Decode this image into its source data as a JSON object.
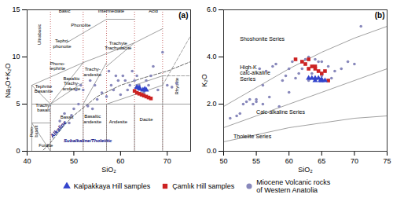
{
  "chart_data": [
    {
      "type": "scatter",
      "title": "(a)",
      "xlabel": "SiO₂",
      "ylabel": "Na₂O+K₂O",
      "xlim": [
        40,
        75
      ],
      "ylim": [
        0,
        15
      ],
      "xticks": [
        40,
        50,
        60,
        70
      ],
      "yticks": [
        0,
        5,
        10,
        15
      ],
      "series": [
        {
          "name": "Kalpakkaya Hill samples",
          "color": "#3344cc",
          "marker": "triangle",
          "x": [
            63.5,
            64.2,
            64.8,
            65.2,
            65.5,
            64.0
          ],
          "values": [
            6.8,
            6.6,
            6.5,
            6.6,
            6.5,
            6.7
          ]
        },
        {
          "name": "Çamlık Hill samples",
          "color": "#cc2222",
          "marker": "square",
          "x": [
            63.0,
            63.5,
            64.0,
            64.5,
            65.0,
            65.5,
            66.0,
            66.5
          ],
          "values": [
            6.4,
            6.2,
            6.1,
            6.0,
            5.9,
            5.8,
            5.7,
            5.6
          ]
        },
        {
          "name": "Miocene Volcanic rocks\nof Western Anatolia",
          "color": "#8888bb",
          "marker": "circle",
          "x": [
            47,
            48,
            49,
            49.5,
            50,
            50.5,
            51,
            51.5,
            52,
            53,
            53.5,
            54,
            54.5,
            55,
            56,
            57,
            57.5,
            58,
            58.5,
            59,
            59.5,
            60,
            60.5,
            61,
            61.5,
            62,
            62.5,
            63,
            63.5,
            64,
            64.5,
            65,
            65.5,
            66,
            66.5,
            67,
            68,
            69,
            70,
            71,
            72
          ],
          "values": [
            3.2,
            4.0,
            3.0,
            3.8,
            4.5,
            6.5,
            5.0,
            7.0,
            6.5,
            4.8,
            7.5,
            4.5,
            7.0,
            5.5,
            6.2,
            5.8,
            8.5,
            7.0,
            6.5,
            8.0,
            7.5,
            6.0,
            8.0,
            7.5,
            6.5,
            7.0,
            8.5,
            7.5,
            8.0,
            7.0,
            6.5,
            6.2,
            7.5,
            7.0,
            8.0,
            9.0,
            6.5,
            10.5,
            7.0,
            6.8,
            7.2
          ]
        }
      ],
      "boundaries": [
        {
          "color": "#888888",
          "line_style": "solid",
          "paths": [
            [
              [
                41,
                0
              ],
              [
                41,
                7
              ]
            ],
            [
              [
                41,
                3
              ],
              [
                45,
                3
              ]
            ],
            [
              [
                41,
                3
              ],
              [
                45,
                0
              ]
            ],
            [
              [
                41,
                7
              ],
              [
                45,
                5
              ]
            ],
            [
              [
                45,
                0
              ],
              [
                45,
                5
              ]
            ],
            [
              [
                52,
                0
              ],
              [
                52,
                5
              ]
            ],
            [
              [
                57,
                0
              ],
              [
                57,
                5
              ]
            ],
            [
              [
                63,
                0
              ],
              [
                63,
                5
              ]
            ],
            [
              [
                69,
                0
              ],
              [
                69,
                5
              ]
            ],
            [
              [
                41,
                5
              ],
              [
                77,
                5
              ]
            ],
            [
              [
                48.4,
                11.5
              ],
              [
                57,
                14.0
              ]
            ],
            [
              [
                57,
                14.0
              ],
              [
                63,
                14.0
              ]
            ],
            [
              [
                45,
                5.0
              ],
              [
                52,
                9.4
              ]
            ],
            [
              [
                45,
                5.0
              ],
              [
                52,
                7.3
              ]
            ],
            [
              [
                52,
                5
              ],
              [
                57,
                9.4
              ]
            ],
            [
              [
                52,
                9.4
              ],
              [
                63,
                11.5
              ]
            ],
            [
              [
                57,
                9.0
              ],
              [
                63,
                11.5
              ]
            ],
            [
              [
                63,
                11.5
              ],
              [
                69,
                13.0
              ]
            ],
            [
              [
                69,
                5
              ],
              [
                69,
                8
              ]
            ],
            [
              [
                63,
                7
              ],
              [
                69,
                8
              ]
            ],
            [
              [
                57,
                5
              ],
              [
                69,
                7
              ]
            ],
            [
              [
                41,
                7.0
              ],
              [
                52,
                9.4
              ]
            ]
          ]
        },
        {
          "color": "#888888",
          "line_style": "dashed",
          "paths": [
            [
              [
                69,
                8
              ],
              [
                77,
                8
              ]
            ],
            [
              [
                69,
                7.0
              ],
              [
                77,
                14
              ]
            ]
          ]
        },
        {
          "color": "#444444",
          "line_style": "dashed",
          "paths": [
            [
              [
                39.0,
                -0.5
              ],
              [
                40.0,
                0.0
              ],
              [
                43.2,
                0.0
              ],
              [
                45,
                0.9
              ],
              [
                48,
                2.8
              ],
              [
                50,
                3.8
              ],
              [
                53,
                5.0
              ],
              [
                55,
                5.8
              ],
              [
                60,
                7.0
              ],
              [
                65,
                7.8
              ],
              [
                70,
                8.5
              ],
              [
                75,
                9.5
              ],
              [
                77,
                10.0
              ]
            ]
          ]
        }
      ],
      "vertical_lines": {
        "color": "#bb4444",
        "line_style": "dotted",
        "x": [
          45,
          52,
          57,
          63,
          69
        ]
      },
      "annotations": [
        {
          "text": "Ultrabasic",
          "x": 42.2,
          "y": 13.5
        },
        {
          "text": "Basic",
          "x": 48,
          "y": 14.7
        },
        {
          "text": "Intermediate",
          "x": 58,
          "y": 14.7
        },
        {
          "text": "Acid",
          "x": 67,
          "y": 14.7
        },
        {
          "text": "Phonolite",
          "x": 51.5,
          "y": 13.2
        },
        {
          "text": "Tephri-\nphonoite",
          "x": 47.5,
          "y": 11.0
        },
        {
          "text": "Trachyte\nTrachydacite",
          "x": 59.5,
          "y": 10.8
        },
        {
          "text": "Phono-\ntephrite",
          "x": 46.5,
          "y": 8.6
        },
        {
          "text": "Trachy-\nandesite",
          "x": 54.0,
          "y": 8.0
        },
        {
          "text": "Tephrite\nBasanite",
          "x": 43.5,
          "y": 6.2
        },
        {
          "text": "Basaltic\nTrachy-\nandesite",
          "x": 49.5,
          "y": 6.5
        },
        {
          "text": "Trachy-\nbasalt",
          "x": 43.5,
          "y": 4.2
        },
        {
          "text": "Basalt",
          "x": 48.5,
          "y": 3.5
        },
        {
          "text": "Picro-\nbasalt",
          "x": 41.5,
          "y": 1.5
        },
        {
          "text": "Basaltic\nandesite",
          "x": 54.0,
          "y": 3.0
        },
        {
          "text": "Andesite",
          "x": 59.5,
          "y": 3.0
        },
        {
          "text": "Dacite",
          "x": 65.5,
          "y": 3.2
        },
        {
          "text": "Rhyolite",
          "x": 72.0,
          "y": 6.0
        },
        {
          "text": "Foidite",
          "x": 42.5,
          "y": 0.5
        },
        {
          "text": "Alkaline",
          "x": 47.0,
          "y": 2.2,
          "color": "navy"
        },
        {
          "text": "Subalkaline/Tholeiitic",
          "x": 53.0,
          "y": 1.0,
          "color": "navy"
        }
      ]
    },
    {
      "type": "scatter",
      "title": "(b)",
      "xlabel": "SiO₂",
      "ylabel": "K₂O",
      "xlim": [
        50,
        75
      ],
      "ylim": [
        0,
        6
      ],
      "xticks": [
        50,
        55,
        60,
        65,
        70,
        75
      ],
      "yticks": [
        0,
        2,
        4,
        6
      ],
      "legend": "bottom",
      "series": [
        {
          "name": "Kalpakkaya Hill samples",
          "color": "#3344cc",
          "marker": "triangle",
          "x": [
            63.5,
            64.0,
            64.5,
            65.0,
            65.5,
            64.0,
            63.0,
            65.0,
            64.8
          ],
          "values": [
            3.1,
            3.0,
            3.1,
            3.0,
            3.0,
            3.1,
            3.1,
            3.05,
            3.0
          ]
        },
        {
          "name": "Çamlık Hill samples",
          "color": "#cc2222",
          "marker": "square",
          "x": [
            61.0,
            62.0,
            63.0,
            63.5,
            64.0,
            64.5,
            65.0,
            65.5,
            66.0,
            63.0,
            64.0,
            62.5
          ],
          "values": [
            3.9,
            3.8,
            3.5,
            3.6,
            3.5,
            3.4,
            3.3,
            3.4,
            3.0,
            3.9,
            3.6,
            3.7
          ]
        },
        {
          "name": "Miocene Volcanic rocks\nof Western Anatolia",
          "color": "#8888bb",
          "marker": "circle",
          "x": [
            51,
            52,
            52.5,
            53,
            53.5,
            54,
            54.5,
            55,
            55.5,
            56,
            56.5,
            57,
            57.5,
            58,
            58.5,
            59,
            59.5,
            60,
            60.5,
            61,
            61.5,
            62,
            62.5,
            63,
            63.5,
            64,
            64.5,
            65,
            65.5,
            66,
            66.5,
            67,
            68,
            69,
            70,
            71,
            55,
            56,
            60,
            63,
            64,
            65
          ],
          "values": [
            1.4,
            1.5,
            1.6,
            2.0,
            2.1,
            2.2,
            2.0,
            2.1,
            3.5,
            2.0,
            3.4,
            2.3,
            3.6,
            3.7,
            1.9,
            3.0,
            3.2,
            3.5,
            3.8,
            3.1,
            3.3,
            3.5,
            3.9,
            3.0,
            3.3,
            3.5,
            3.8,
            3.2,
            3.4,
            3.6,
            3.1,
            3.4,
            3.5,
            3.8,
            3.7,
            5.3,
            2.2,
            2.8,
            2.5,
            4.0,
            3.9,
            3.8
          ]
        }
      ],
      "boundaries": [
        {
          "color": "#888888",
          "line_style": "solid",
          "paths": [
            [
              [
                50,
                0.4
              ],
              [
                55,
                0.7
              ],
              [
                60,
                1.0
              ],
              [
                65,
                1.2
              ],
              [
                70,
                1.4
              ],
              [
                75,
                1.5
              ]
            ],
            [
              [
                50,
                1.0
              ],
              [
                55,
                1.5
              ],
              [
                60,
                2.0
              ],
              [
                65,
                2.5
              ],
              [
                70,
                3.0
              ],
              [
                75,
                3.5
              ]
            ],
            [
              [
                50,
                1.9
              ],
              [
                55,
                2.7
              ],
              [
                60,
                3.5
              ],
              [
                65,
                4.2
              ],
              [
                70,
                4.8
              ],
              [
                75,
                5.3
              ]
            ]
          ]
        }
      ],
      "annotations": [
        {
          "text": "Shoshonite Series",
          "x": 52.5,
          "y": 4.7
        },
        {
          "text": "High-K\ncalc-alkaline\nSeries",
          "x": 52.5,
          "y": 3.0
        },
        {
          "text": "Calc-alkaline Series",
          "x": 55.0,
          "y": 1.6
        },
        {
          "text": "Tholeiite Series",
          "x": 51.5,
          "y": 0.55
        }
      ]
    }
  ]
}
